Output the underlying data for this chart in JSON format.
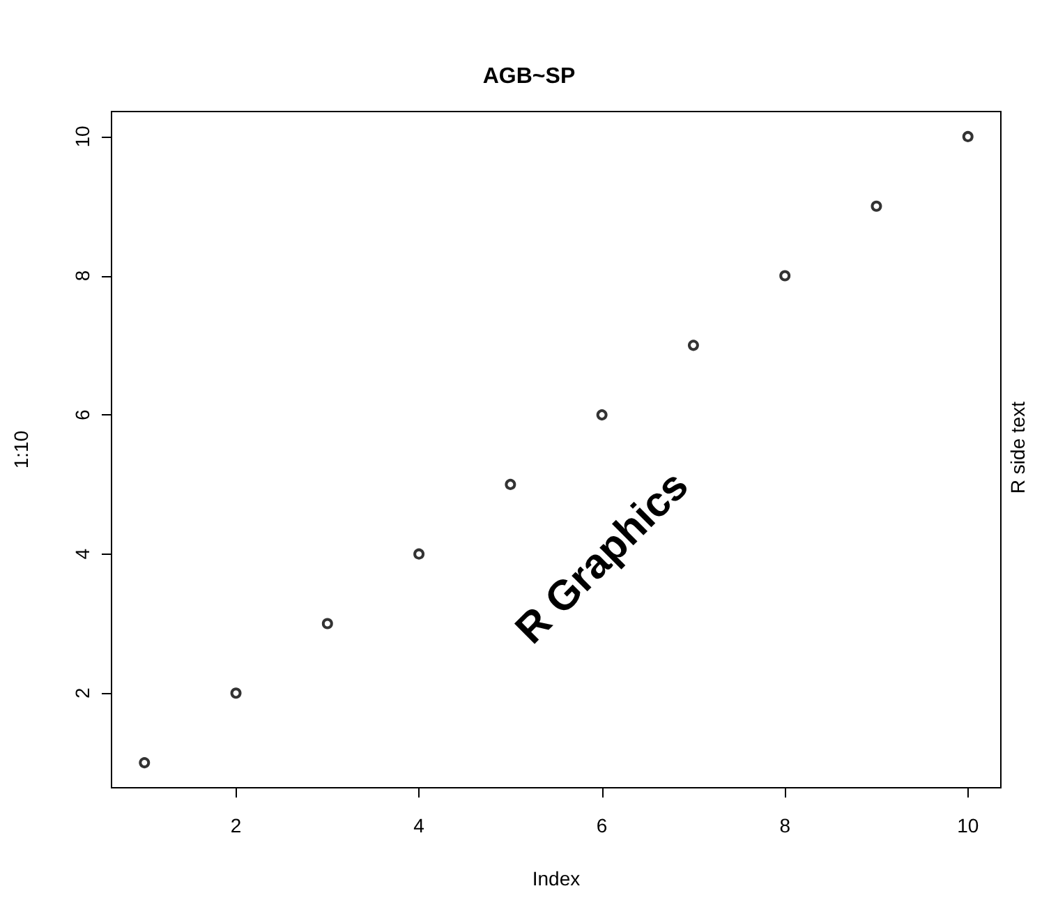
{
  "chart_data": {
    "type": "scatter",
    "title": "AGB~SP",
    "xlabel": "Index",
    "ylabel": "1:10",
    "x": [
      1,
      2,
      3,
      4,
      5,
      6,
      7,
      8,
      9,
      10
    ],
    "values": [
      1,
      2,
      3,
      4,
      5,
      6,
      7,
      8,
      9,
      10
    ],
    "color": "#000000",
    "marker": "circle",
    "grid": false,
    "xlim": [
      0.64,
      10.36
    ],
    "ylim": [
      0.64,
      10.36
    ],
    "xticks": [
      2,
      4,
      6,
      8,
      10
    ],
    "yticks": [
      2,
      4,
      6,
      8,
      10
    ],
    "annotations": [
      "R Graphics",
      "R side text"
    ]
  }
}
